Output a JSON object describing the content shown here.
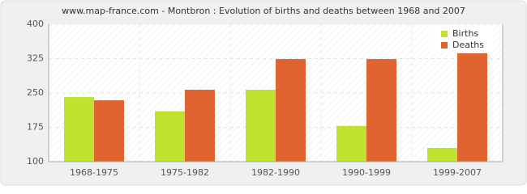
{
  "chart_data": {
    "type": "bar",
    "title": "www.map-france.com - Montbron : Evolution of births and deaths between 1968 and 2007",
    "categories": [
      "1968-1975",
      "1975-1982",
      "1982-1990",
      "1990-1999",
      "1999-2007"
    ],
    "series": [
      {
        "name": "Births",
        "color": "#bfe22e",
        "values": [
          241,
          210,
          257,
          178,
          130
        ]
      },
      {
        "name": "Deaths",
        "color": "#e06430",
        "values": [
          234,
          257,
          324,
          324,
          344
        ]
      }
    ],
    "ylim": [
      100,
      400
    ],
    "yticks": [
      100,
      175,
      250,
      325,
      400
    ],
    "grid": true,
    "legend": "top-right"
  }
}
